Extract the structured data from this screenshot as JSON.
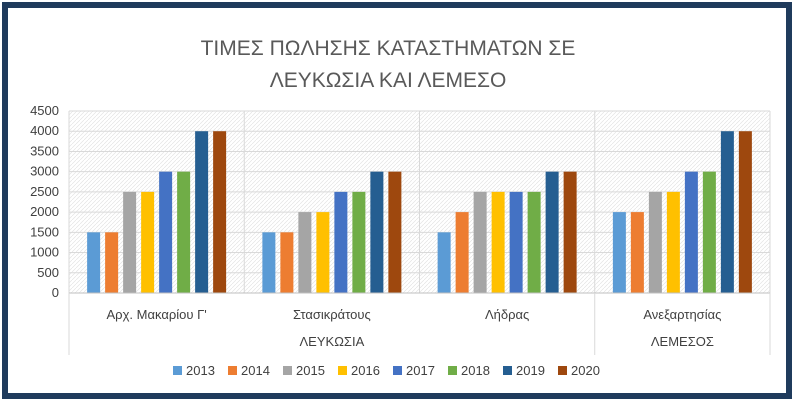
{
  "chart_data": {
    "type": "bar",
    "title_lines": [
      "ΤΙΜΕΣ ΠΩΛΗΣΗΣ ΚΑΤΑΣΤΗΜΑΤΩΝ ΣΕ",
      "ΛΕΥΚΩΣΙΑ ΚΑΙ ΛΕΜΕΣΟ"
    ],
    "categories": [
      "Αρχ. Μακαρίου Γ'",
      "Στασικράτους",
      "Λήδρας",
      "Ανεξαρτησίας"
    ],
    "groups": [
      {
        "label": "ΛΕΥΚΩΣΙΑ",
        "categories": [
          "Αρχ. Μακαρίου Γ'",
          "Στασικράτους",
          "Λήδρας"
        ]
      },
      {
        "label": "ΛΕΜΕΣΟΣ",
        "categories": [
          "Ανεξαρτησίας"
        ]
      }
    ],
    "series": [
      {
        "name": "2013",
        "color": "#5b9bd5",
        "values": [
          1500,
          1500,
          1500,
          2000
        ]
      },
      {
        "name": "2014",
        "color": "#ed7d31",
        "values": [
          1500,
          1500,
          2000,
          2000
        ]
      },
      {
        "name": "2015",
        "color": "#a5a5a5",
        "values": [
          2500,
          2000,
          2500,
          2500
        ]
      },
      {
        "name": "2016",
        "color": "#ffc000",
        "values": [
          2500,
          2000,
          2500,
          2500
        ]
      },
      {
        "name": "2017",
        "color": "#4472c4",
        "values": [
          3000,
          2500,
          2500,
          3000
        ]
      },
      {
        "name": "2018",
        "color": "#70ad47",
        "values": [
          3000,
          2500,
          2500,
          3000
        ]
      },
      {
        "name": "2019",
        "color": "#255e91",
        "values": [
          4000,
          3000,
          3000,
          4000
        ]
      },
      {
        "name": "2020",
        "color": "#9e480e",
        "values": [
          4000,
          3000,
          3000,
          4000
        ]
      }
    ],
    "y_ticks": [
      "0",
      "500",
      "1000",
      "1500",
      "2000",
      "2500",
      "3000",
      "3500",
      "4000",
      "4500"
    ],
    "ylim": [
      0,
      4500
    ],
    "grid": true,
    "legend_position": "bottom"
  }
}
